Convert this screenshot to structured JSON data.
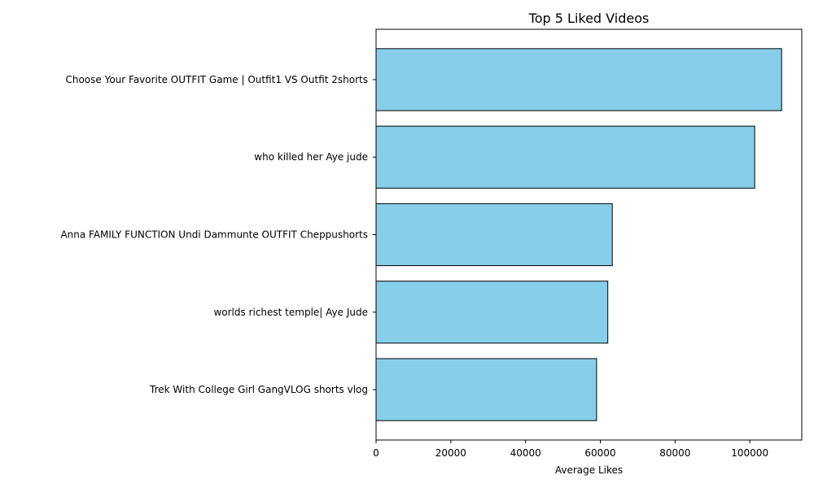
{
  "chart_data": {
    "type": "bar",
    "orientation": "horizontal",
    "title": "Top 5 Liked Videos",
    "xlabel": "Average Likes",
    "ylabel": "",
    "categories": [
      "Choose Your Favorite OUTFIT Game | Outfit1 VS Outfit 2shorts",
      "who killed her Aye jude",
      "Anna FAMILY FUNCTION Undi Dammunte OUTFIT Cheppushorts",
      "worlds richest temple| Aye Jude",
      "Trek With College Girl GangVLOG shorts vlog"
    ],
    "values": [
      108500,
      101300,
      63200,
      62000,
      59000
    ],
    "xlim": [
      0,
      113900
    ],
    "xticks": [
      0,
      20000,
      40000,
      60000,
      80000,
      100000
    ],
    "bar_color": "#87CEEB",
    "edge_color": "#000000",
    "grid": false,
    "legend": false
  }
}
